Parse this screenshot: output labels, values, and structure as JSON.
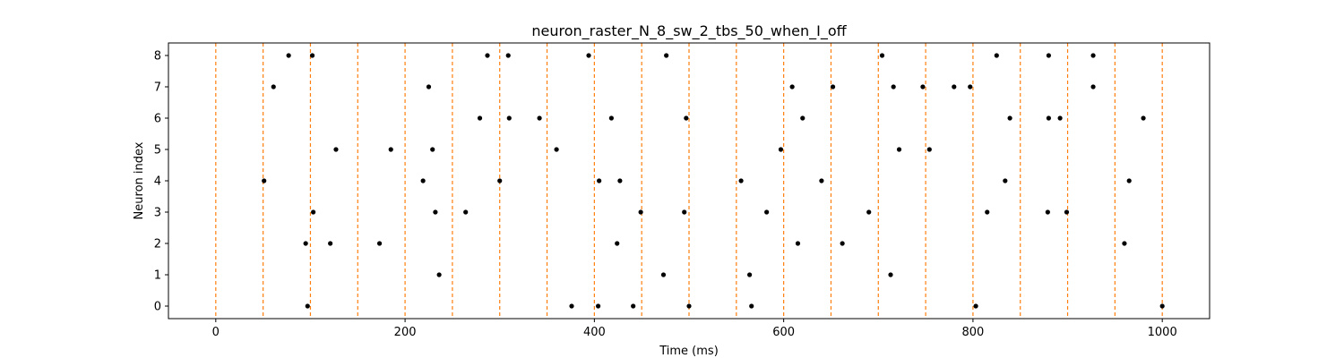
{
  "chart_data": {
    "type": "scatter",
    "title": "neuron_raster_N_8_sw_2_tbs_50_when_I_off",
    "xlabel": "Time (ms)",
    "ylabel": "Neuron index",
    "xlim": [
      -50,
      1050
    ],
    "ylim": [
      -0.4,
      8.4
    ],
    "xticks": [
      0,
      200,
      400,
      600,
      800,
      1000
    ],
    "yticks": [
      0,
      1,
      2,
      3,
      4,
      5,
      6,
      7,
      8
    ],
    "grid": false,
    "marker_color": "#000000",
    "vline_color": "#ff7f0e",
    "vlines": [
      0,
      50,
      100,
      150,
      200,
      250,
      300,
      350,
      400,
      450,
      500,
      550,
      600,
      650,
      700,
      750,
      800,
      850,
      900,
      950,
      1000
    ],
    "series": [
      {
        "neuron": 0,
        "x": [
          97,
          376,
          404,
          441,
          500,
          566,
          803,
          1000
        ]
      },
      {
        "neuron": 1,
        "x": [
          236,
          473,
          564,
          713
        ]
      },
      {
        "neuron": 2,
        "x": [
          95,
          121,
          173,
          424,
          615,
          662,
          960
        ]
      },
      {
        "neuron": 3,
        "x": [
          103,
          232,
          264,
          449,
          495,
          582,
          690,
          815,
          879,
          899
        ]
      },
      {
        "neuron": 4,
        "x": [
          51,
          219,
          300,
          405,
          427,
          555,
          640,
          834,
          965
        ]
      },
      {
        "neuron": 5,
        "x": [
          127,
          185,
          229,
          360,
          597,
          722,
          754
        ]
      },
      {
        "neuron": 6,
        "x": [
          279,
          310,
          342,
          418,
          497,
          620,
          839,
          880,
          892,
          980
        ]
      },
      {
        "neuron": 7,
        "x": [
          61,
          225,
          609,
          652,
          716,
          747,
          780,
          797,
          927
        ]
      },
      {
        "neuron": 8,
        "x": [
          77,
          102,
          287,
          309,
          394,
          476,
          704,
          825,
          880,
          927
        ]
      }
    ]
  }
}
